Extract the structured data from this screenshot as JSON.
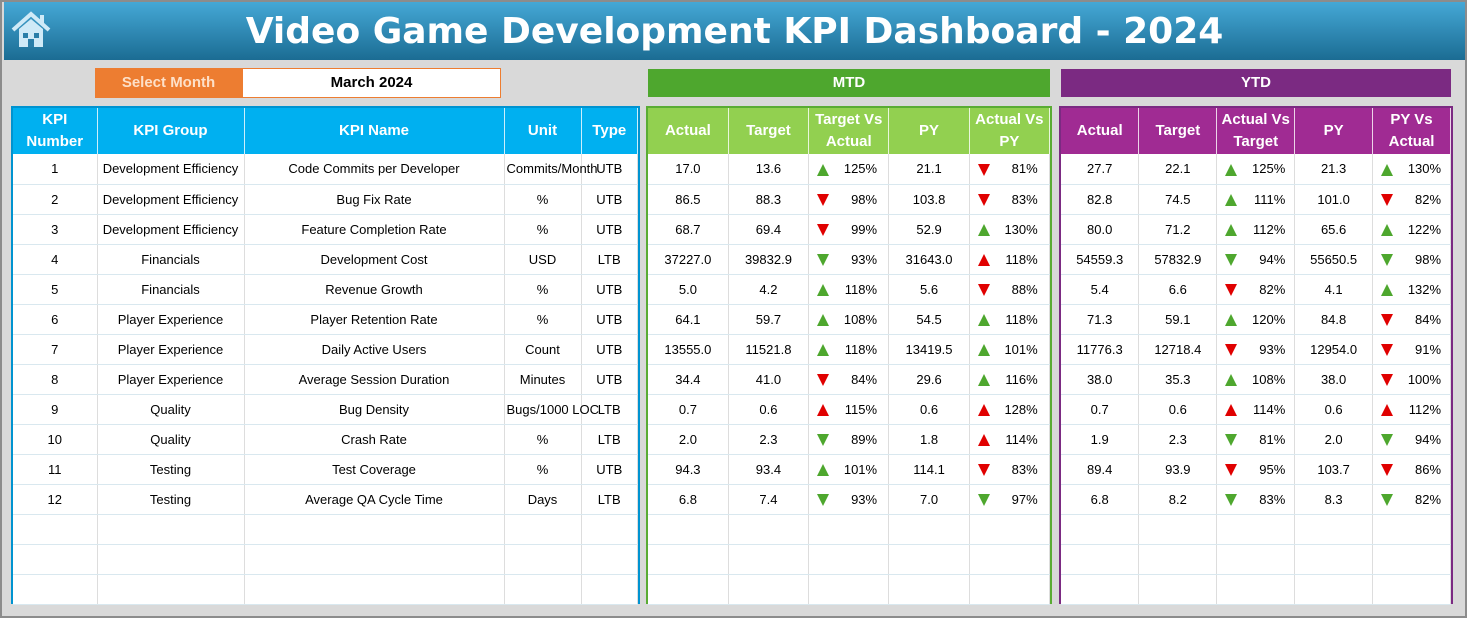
{
  "title": "Video Game Development KPI Dashboard - 2024",
  "select_month": {
    "label": "Select Month",
    "value": "March 2024"
  },
  "colors": {
    "up_good": "#4ea72e",
    "down_bad": "#e00000",
    "kpi_header": "#00b0f0",
    "mtd": "#92d050",
    "ytd": "#a02b93"
  },
  "mtd_label": "MTD",
  "ytd_label": "YTD",
  "kpi_headers": [
    "KPI Number",
    "KPI Group",
    "KPI Name",
    "Unit",
    "Type"
  ],
  "mtd_headers": [
    "Actual",
    "Target",
    "Target Vs Actual",
    "PY",
    "Actual Vs PY"
  ],
  "ytd_headers": [
    "Actual",
    "Target",
    "Actual Vs Target",
    "PY",
    "PY Vs Actual"
  ],
  "kpis": [
    [
      "1",
      "Development Efficiency",
      "Code Commits per Developer",
      "Commits/Month",
      "UTB"
    ],
    [
      "2",
      "Development Efficiency",
      "Bug Fix Rate",
      "%",
      "UTB"
    ],
    [
      "3",
      "Development Efficiency",
      "Feature Completion Rate",
      "%",
      "UTB"
    ],
    [
      "4",
      "Financials",
      "Development Cost",
      "USD",
      "LTB"
    ],
    [
      "5",
      "Financials",
      "Revenue Growth",
      "%",
      "UTB"
    ],
    [
      "6",
      "Player Experience",
      "Player Retention Rate",
      "%",
      "UTB"
    ],
    [
      "7",
      "Player Experience",
      "Daily Active Users",
      "Count",
      "UTB"
    ],
    [
      "8",
      "Player Experience",
      "Average Session Duration",
      "Minutes",
      "UTB"
    ],
    [
      "9",
      "Quality",
      "Bug Density",
      "Bugs/1000 LOC",
      "LTB"
    ],
    [
      "10",
      "Quality",
      "Crash Rate",
      "%",
      "LTB"
    ],
    [
      "11",
      "Testing",
      "Test Coverage",
      "%",
      "UTB"
    ],
    [
      "12",
      "Testing",
      "Average QA Cycle Time",
      "Days",
      "LTB"
    ]
  ],
  "mtd": [
    [
      "17.0",
      "13.6",
      [
        "up",
        "green",
        "125%"
      ],
      "21.1",
      [
        "down",
        "red",
        "81%"
      ]
    ],
    [
      "86.5",
      "88.3",
      [
        "down",
        "red",
        "98%"
      ],
      "103.8",
      [
        "down",
        "red",
        "83%"
      ]
    ],
    [
      "68.7",
      "69.4",
      [
        "down",
        "red",
        "99%"
      ],
      "52.9",
      [
        "up",
        "green",
        "130%"
      ]
    ],
    [
      "37227.0",
      "39832.9",
      [
        "down",
        "green",
        "93%"
      ],
      "31643.0",
      [
        "up",
        "red",
        "118%"
      ]
    ],
    [
      "5.0",
      "4.2",
      [
        "up",
        "green",
        "118%"
      ],
      "5.6",
      [
        "down",
        "red",
        "88%"
      ]
    ],
    [
      "64.1",
      "59.7",
      [
        "up",
        "green",
        "108%"
      ],
      "54.5",
      [
        "up",
        "green",
        "118%"
      ]
    ],
    [
      "13555.0",
      "11521.8",
      [
        "up",
        "green",
        "118%"
      ],
      "13419.5",
      [
        "up",
        "green",
        "101%"
      ]
    ],
    [
      "34.4",
      "41.0",
      [
        "down",
        "red",
        "84%"
      ],
      "29.6",
      [
        "up",
        "green",
        "116%"
      ]
    ],
    [
      "0.7",
      "0.6",
      [
        "up",
        "red",
        "115%"
      ],
      "0.6",
      [
        "up",
        "red",
        "128%"
      ]
    ],
    [
      "2.0",
      "2.3",
      [
        "down",
        "green",
        "89%"
      ],
      "1.8",
      [
        "up",
        "red",
        "114%"
      ]
    ],
    [
      "94.3",
      "93.4",
      [
        "up",
        "green",
        "101%"
      ],
      "114.1",
      [
        "down",
        "red",
        "83%"
      ]
    ],
    [
      "6.8",
      "7.4",
      [
        "down",
        "green",
        "93%"
      ],
      "7.0",
      [
        "down",
        "green",
        "97%"
      ]
    ]
  ],
  "ytd": [
    [
      "27.7",
      "22.1",
      [
        "up",
        "green",
        "125%"
      ],
      "21.3",
      [
        "up",
        "green",
        "130%"
      ]
    ],
    [
      "82.8",
      "74.5",
      [
        "up",
        "green",
        "111%"
      ],
      "101.0",
      [
        "down",
        "red",
        "82%"
      ]
    ],
    [
      "80.0",
      "71.2",
      [
        "up",
        "green",
        "112%"
      ],
      "65.6",
      [
        "up",
        "green",
        "122%"
      ]
    ],
    [
      "54559.3",
      "57832.9",
      [
        "down",
        "green",
        "94%"
      ],
      "55650.5",
      [
        "down",
        "green",
        "98%"
      ]
    ],
    [
      "5.4",
      "6.6",
      [
        "down",
        "red",
        "82%"
      ],
      "4.1",
      [
        "up",
        "green",
        "132%"
      ]
    ],
    [
      "71.3",
      "59.1",
      [
        "up",
        "green",
        "120%"
      ],
      "84.8",
      [
        "down",
        "red",
        "84%"
      ]
    ],
    [
      "11776.3",
      "12718.4",
      [
        "down",
        "red",
        "93%"
      ],
      "12954.0",
      [
        "down",
        "red",
        "91%"
      ]
    ],
    [
      "38.0",
      "35.3",
      [
        "up",
        "green",
        "108%"
      ],
      "38.0",
      [
        "down",
        "red",
        "100%"
      ]
    ],
    [
      "0.7",
      "0.6",
      [
        "up",
        "red",
        "114%"
      ],
      "0.6",
      [
        "up",
        "red",
        "112%"
      ]
    ],
    [
      "1.9",
      "2.3",
      [
        "down",
        "green",
        "81%"
      ],
      "2.0",
      [
        "down",
        "green",
        "94%"
      ]
    ],
    [
      "89.4",
      "93.9",
      [
        "down",
        "red",
        "95%"
      ],
      "103.7",
      [
        "down",
        "red",
        "86%"
      ]
    ],
    [
      "6.8",
      "8.2",
      [
        "down",
        "green",
        "83%"
      ],
      "8.3",
      [
        "down",
        "green",
        "82%"
      ]
    ]
  ]
}
